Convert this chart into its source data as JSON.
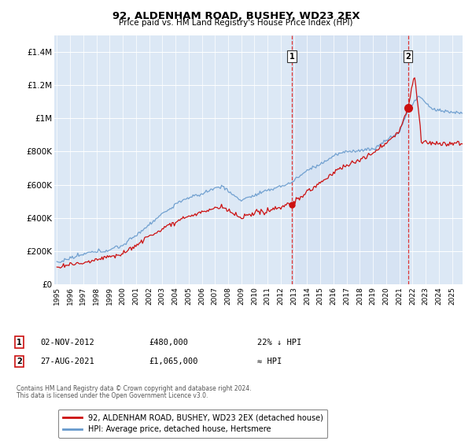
{
  "title": "92, ALDENHAM ROAD, BUSHEY, WD23 2EX",
  "subtitle": "Price paid vs. HM Land Registry's House Price Index (HPI)",
  "ylim": [
    0,
    1500000
  ],
  "yticks": [
    0,
    200000,
    400000,
    600000,
    800000,
    1000000,
    1200000,
    1400000
  ],
  "ytick_labels": [
    "£0",
    "£200K",
    "£400K",
    "£600K",
    "£800K",
    "£1M",
    "£1.2M",
    "£1.4M"
  ],
  "plot_bg_color": "#dce8f5",
  "hpi_color": "#6699cc",
  "price_color": "#cc1111",
  "vline1_x": 2012.83,
  "vline2_x": 2021.65,
  "xmin": 1994.8,
  "xmax": 2025.8,
  "legend_label_price": "92, ALDENHAM ROAD, BUSHEY, WD23 2EX (detached house)",
  "legend_label_hpi": "HPI: Average price, detached house, Hertsmere",
  "footer1": "Contains HM Land Registry data © Crown copyright and database right 2024.",
  "footer2": "This data is licensed under the Open Government Licence v3.0.",
  "t1": 2012.83,
  "t2": 2021.65,
  "price1": 480000,
  "price2": 1065000
}
